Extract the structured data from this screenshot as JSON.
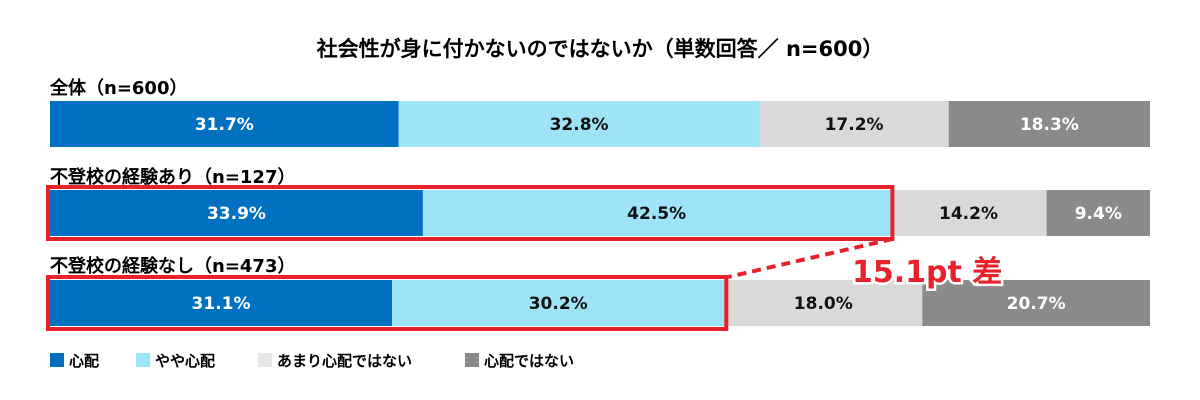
{
  "chart_data": {
    "type": "bar",
    "orientation": "horizontal",
    "stacked": true,
    "percent_stacked": true,
    "title": "社会性が身に付かないのではないか（単数回答／ n=600）",
    "categories": [
      "全体（n=600）",
      "不登校の経験あり（n=127）",
      "不登校の経験なし（n=473）"
    ],
    "series": [
      {
        "name": "心配",
        "color": "#0070c0",
        "values": [
          31.7,
          33.9,
          31.1
        ],
        "labels": [
          "31.7%",
          "33.9%",
          "31.1%"
        ],
        "label_color": "#ffffff"
      },
      {
        "name": "やや心配",
        "color": "#9fe3f8",
        "values": [
          32.8,
          42.5,
          30.2
        ],
        "labels": [
          "32.8%",
          "42.5%",
          "30.2%"
        ],
        "label_color": "#111111"
      },
      {
        "name": "あまり心配ではない",
        "color": "#d9d9d9",
        "values": [
          17.2,
          14.2,
          18.0
        ],
        "labels": [
          "17.2%",
          "14.2%",
          "18.0%"
        ],
        "label_color": "#111111"
      },
      {
        "name": "心配ではない",
        "color": "#8a8a8a",
        "values": [
          18.3,
          9.4,
          20.7
        ],
        "labels": [
          "18.3%",
          "9.4%",
          "20.7%"
        ],
        "label_color": "#ffffff"
      }
    ],
    "xlim": [
      0,
      100
    ],
    "grid": false,
    "legend": {
      "position": "bottom-left",
      "legend_swatch_colors": [
        "#0070c0",
        "#9fe3f8",
        "#e6e6e6",
        "#8a8a8a"
      ]
    },
    "annotation": {
      "text": "15.1pt 差",
      "color": "#e8222b",
      "highlight_series": [
        0,
        1
      ],
      "highlight_categories": [
        1,
        2
      ]
    }
  }
}
